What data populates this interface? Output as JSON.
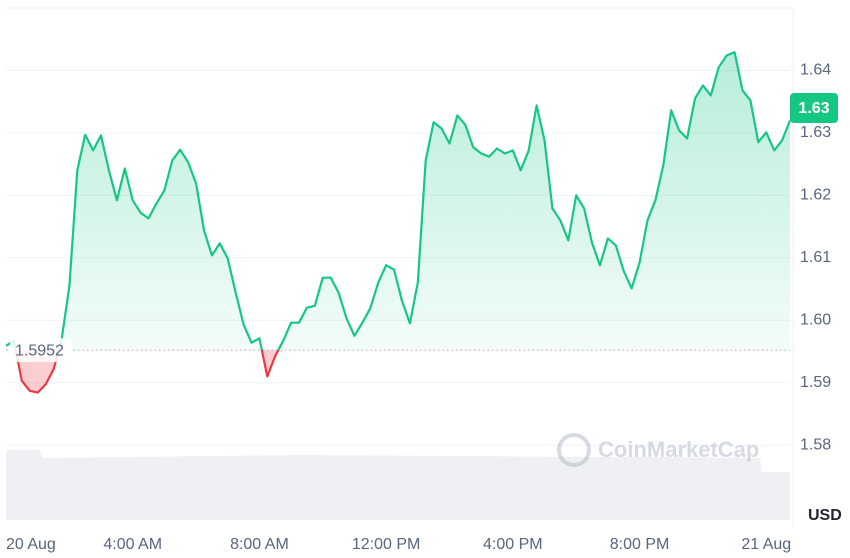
{
  "chart_data": {
    "type": "line",
    "x": [
      0,
      0.25,
      0.5,
      0.75,
      1,
      1.25,
      1.5,
      1.75,
      2,
      2.25,
      2.5,
      2.75,
      3,
      3.25,
      3.5,
      3.75,
      4,
      4.25,
      4.5,
      4.75,
      5,
      5.25,
      5.5,
      5.75,
      6,
      6.25,
      6.5,
      6.75,
      7,
      7.25,
      7.5,
      7.75,
      8,
      8.25,
      8.5,
      8.75,
      9,
      9.25,
      9.5,
      9.75,
      10,
      10.25,
      10.5,
      10.75,
      11,
      11.25,
      11.5,
      11.75,
      12,
      12.25,
      12.5,
      12.75,
      13,
      13.25,
      13.5,
      13.75,
      14,
      14.25,
      14.5,
      14.75,
      15,
      15.25,
      15.5,
      15.75,
      16,
      16.25,
      16.5,
      16.75,
      17,
      17.25,
      17.5,
      17.75,
      18,
      18.25,
      18.5,
      18.75,
      19,
      19.25,
      19.5,
      19.75,
      20,
      20.25,
      20.5,
      20.75,
      21,
      21.25,
      21.5,
      21.75,
      22,
      22.25,
      22.5,
      22.75,
      23,
      23.25,
      23.5,
      23.75,
      24,
      24.25,
      24.5,
      24.75
    ],
    "values": [
      1.5959,
      1.5967,
      1.5903,
      1.5887,
      1.5884,
      1.5897,
      1.5921,
      1.5967,
      1.6055,
      1.624,
      1.6297,
      1.6272,
      1.6296,
      1.624,
      1.6192,
      1.6243,
      1.6192,
      1.6172,
      1.6163,
      1.6187,
      1.6208,
      1.6256,
      1.6273,
      1.6253,
      1.6219,
      1.6144,
      1.6104,
      1.6123,
      1.6099,
      1.6044,
      1.5993,
      1.5964,
      1.5971,
      1.591,
      1.5943,
      1.5967,
      1.5996,
      1.5996,
      1.602,
      1.6023,
      1.6068,
      1.6068,
      1.6044,
      1.6003,
      1.5975,
      1.5996,
      1.6019,
      1.606,
      1.6088,
      1.6081,
      1.6031,
      1.5995,
      1.606,
      1.6256,
      1.6317,
      1.6307,
      1.6283,
      1.6328,
      1.6313,
      1.6277,
      1.6267,
      1.6262,
      1.6275,
      1.6267,
      1.6272,
      1.624,
      1.6272,
      1.6344,
      1.6288,
      1.6179,
      1.616,
      1.6128,
      1.62,
      1.6179,
      1.6124,
      1.6088,
      1.6131,
      1.612,
      1.6079,
      1.6051,
      1.6092,
      1.616,
      1.6192,
      1.6248,
      1.6336,
      1.6304,
      1.6291,
      1.6355,
      1.6376,
      1.636,
      1.6405,
      1.6424,
      1.6429,
      1.6368,
      1.6352,
      1.6285,
      1.6301,
      1.6272,
      1.6288,
      1.632
    ],
    "color": "#16c784",
    "down_color": "#ea3943",
    "baseline": {
      "value": 1.5952,
      "label": "1.5952"
    },
    "last_price_label": "1.63",
    "y_axis_label": "USD",
    "watermark": "CoinMarketCap",
    "xlim": [
      0,
      24.75
    ],
    "xticks": [
      {
        "value": 0,
        "label": "20 Aug"
      },
      {
        "value": 4,
        "label": "4:00 AM"
      },
      {
        "value": 8,
        "label": "8:00 AM"
      },
      {
        "value": 12,
        "label": "12:00 PM"
      },
      {
        "value": 16,
        "label": "4:00 PM"
      },
      {
        "value": 20,
        "label": "8:00 PM"
      },
      {
        "value": 24,
        "label": "21 Aug"
      }
    ],
    "ylim": [
      1.568,
      1.65
    ],
    "yticks": [
      1.58,
      1.59,
      {
        "value": 1.6,
        "label": "1.60"
      },
      1.61,
      1.62,
      1.63,
      1.64
    ],
    "grid": true
  }
}
